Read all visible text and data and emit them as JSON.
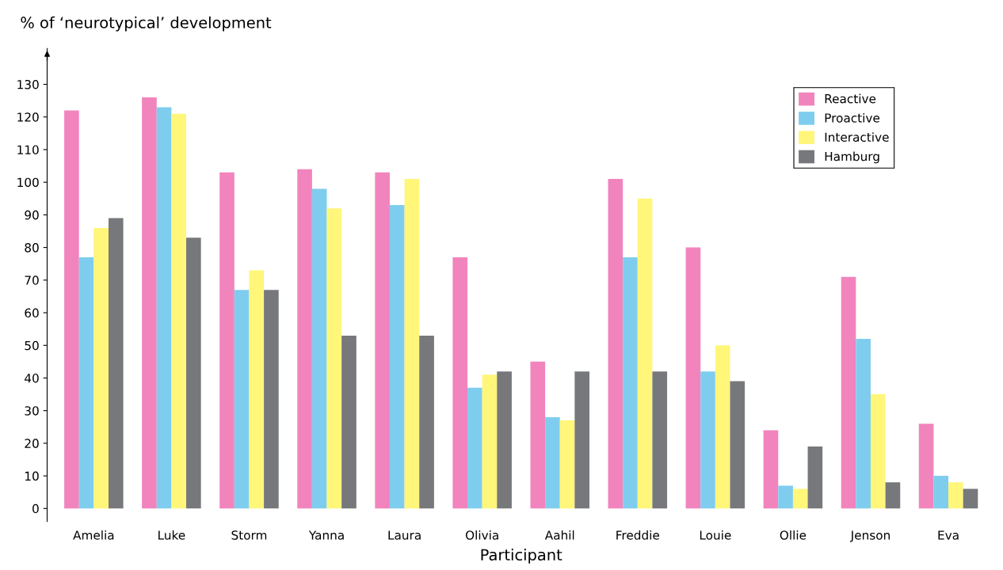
{
  "chart_data": {
    "type": "bar",
    "ylabel": "% of ‘neurotypical’ development",
    "xlabel": "Participant",
    "categories": [
      "Amelia",
      "Luke",
      "Storm",
      "Yanna",
      "Laura",
      "Olivia",
      "Aahil",
      "Freddie",
      "Louie",
      "Ollie",
      "Jenson",
      "Eva"
    ],
    "series": [
      {
        "name": "Reactive",
        "color": "#f184bd",
        "values": [
          122,
          126,
          103,
          104,
          103,
          77,
          45,
          101,
          80,
          24,
          71,
          26
        ]
      },
      {
        "name": "Proactive",
        "color": "#7fcdee",
        "values": [
          77,
          123,
          67,
          98,
          93,
          37,
          28,
          77,
          42,
          7,
          52,
          10
        ]
      },
      {
        "name": "Interactive",
        "color": "#fff67a",
        "values": [
          86,
          121,
          73,
          92,
          101,
          41,
          27,
          95,
          50,
          6,
          35,
          8
        ]
      },
      {
        "name": "Hamburg",
        "color": "#76787b",
        "values": [
          89,
          83,
          67,
          53,
          53,
          42,
          42,
          42,
          39,
          19,
          8,
          6
        ]
      }
    ],
    "ylim": [
      -4,
      141
    ],
    "yticks": [
      0,
      10,
      20,
      30,
      40,
      50,
      60,
      70,
      80,
      90,
      100,
      110,
      120,
      130
    ],
    "grid": false,
    "legend": "top right"
  }
}
